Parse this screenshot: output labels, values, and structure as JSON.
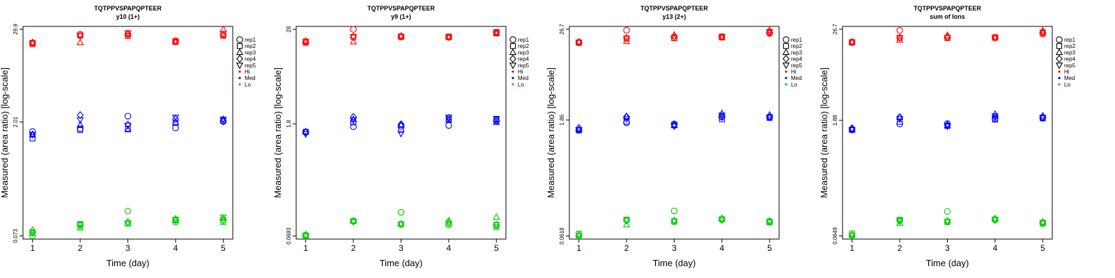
{
  "chart_data": [
    {
      "type": "scatter",
      "title": "TQTPPVSPAPQPTEER",
      "subtitle": "y10 (1+)",
      "xlabel": "Time (day)",
      "ylabel": "Measured (area ratio) [log-scale]",
      "y_scale": "log",
      "ylim": [
        0.0665,
        32.5
      ],
      "xlim": [
        0.8,
        5.2
      ],
      "x_ticks": [
        1,
        2,
        3,
        4,
        5
      ],
      "y_ticks": [
        0.073,
        2.01,
        29.9
      ],
      "levels": [
        {
          "name": "Hi",
          "color": "#ff0000",
          "reps": [
            [
              19.9,
              25.9,
              25.7,
              21.3,
              25.2
            ],
            [
              19.4,
              24.9,
              24.5,
              20.7,
              24.8
            ],
            [
              20.4,
              20.3,
              26.3,
              20.7,
              29.9
            ],
            [
              20.3,
              24.8,
              25.8,
              20.9,
              25.4
            ],
            [
              20.2,
              24.9,
              26.9,
              21.1,
              26.3
            ]
          ]
        },
        {
          "name": "Med",
          "color": "#0000ff",
          "reps": [
            [
              1.52,
              1.66,
              2.38,
              1.69,
              2.04
            ],
            [
              1.24,
              1.59,
              1.65,
              1.96,
              2.09
            ],
            [
              1.39,
              1.86,
              1.61,
              1.99,
              2.18
            ],
            [
              1.4,
              2.46,
              1.87,
              2.19,
              2.04
            ],
            [
              1.39,
              2.14,
              1.82,
              2.31,
              2.17
            ]
          ]
        },
        {
          "name": "Lo",
          "color": "#00cc00",
          "reps": [
            [
              0.073,
              0.098,
              0.15,
              0.109,
              0.117
            ],
            [
              0.079,
              0.103,
              0.105,
              0.115,
              0.109
            ],
            [
              0.087,
              0.092,
              0.104,
              0.12,
              0.122
            ],
            [
              0.08,
              0.101,
              0.109,
              0.115,
              0.114
            ],
            [
              0.082,
              0.102,
              0.106,
              0.118,
              0.126
            ]
          ]
        }
      ]
    },
    {
      "type": "scatter",
      "title": "TQTPPVSPAPQPTEER",
      "subtitle": "y9 (1+)",
      "xlabel": "Time (day)",
      "ylabel": "Measured (area ratio) [log-scale]",
      "y_scale": "log",
      "ylim": [
        0.0635,
        30.5
      ],
      "xlim": [
        0.8,
        5.2
      ],
      "x_ticks": [
        1,
        2,
        3,
        4,
        5
      ],
      "y_ticks": [
        0.0693,
        1.8,
        28
      ],
      "levels": [
        {
          "name": "Hi",
          "color": "#ff0000",
          "reps": [
            [
              19.2,
              28.0,
              22.8,
              22.5,
              25.5
            ],
            [
              19.0,
              22.5,
              22.4,
              22.7,
              25.9
            ],
            [
              20.0,
              19.6,
              23.1,
              22.1,
              24.8
            ],
            [
              19.4,
              22.7,
              22.6,
              22.3,
              25.2
            ],
            [
              19.8,
              22.3,
              22.9,
              22.6,
              25.6
            ]
          ]
        },
        {
          "name": "Med",
          "color": "#0000ff",
          "reps": [
            [
              1.41,
              1.66,
              1.68,
              1.72,
              1.96
            ],
            [
              1.43,
              1.87,
              1.51,
              2.06,
              2.05
            ],
            [
              1.44,
              2.06,
              1.75,
              2.01,
              1.88
            ],
            [
              1.42,
              2.21,
              1.78,
              2.14,
              2.0
            ],
            [
              1.34,
              2.01,
              1.36,
              2.18,
              2.1
            ]
          ]
        },
        {
          "name": "Lo",
          "color": "#00cc00",
          "reps": [
            [
              0.0693,
              0.107,
              0.138,
              0.096,
              0.094
            ],
            [
              0.0707,
              0.107,
              0.098,
              0.1,
              0.09
            ],
            [
              0.071,
              0.108,
              0.099,
              0.109,
              0.12
            ],
            [
              0.072,
              0.106,
              0.097,
              0.103,
              0.096
            ],
            [
              0.07,
              0.105,
              0.098,
              0.101,
              0.097
            ]
          ]
        }
      ]
    },
    {
      "type": "scatter",
      "title": "TQTPPVSPAPQPTEER",
      "subtitle": "y13 (2+)",
      "xlabel": "Time (day)",
      "ylabel": "Measured (area ratio) [log-scale]",
      "y_scale": "log",
      "ylim": [
        0.0565,
        29.0
      ],
      "xlim": [
        0.8,
        5.2
      ],
      "x_ticks": [
        1,
        2,
        3,
        4,
        5
      ],
      "y_ticks": [
        0.0618,
        1.86,
        26.7
      ],
      "levels": [
        {
          "name": "Hi",
          "color": "#ff0000",
          "reps": [
            [
              18.2,
              25.9,
              20.6,
              21.4,
              23.6
            ],
            [
              17.9,
              20.4,
              20.5,
              21.5,
              24.1
            ],
            [
              18.4,
              18.7,
              22.6,
              20.9,
              26.0
            ],
            [
              18.1,
              20.6,
              21.3,
              21.2,
              24.4
            ],
            [
              18.3,
              20.3,
              21.0,
              21.3,
              24.8
            ]
          ]
        },
        {
          "name": "Med",
          "color": "#0000ff",
          "reps": [
            [
              1.38,
              1.72,
              1.66,
              2.02,
              2.02
            ],
            [
              1.37,
              1.77,
              1.59,
              1.9,
              1.98
            ],
            [
              1.41,
              2.07,
              1.6,
              2.26,
              2.16
            ],
            [
              1.48,
              2.05,
              1.62,
              2.07,
              2.01
            ],
            [
              1.39,
              1.92,
              1.55,
              2.14,
              2.04
            ]
          ]
        },
        {
          "name": "Lo",
          "color": "#00cc00",
          "reps": [
            [
              0.0618,
              0.099,
              0.129,
              0.1,
              0.094
            ],
            [
              0.0664,
              0.1,
              0.094,
              0.101,
              0.092
            ],
            [
              0.064,
              0.086,
              0.098,
              0.105,
              0.097
            ],
            [
              0.063,
              0.097,
              0.095,
              0.099,
              0.093
            ],
            [
              0.0625,
              0.098,
              0.096,
              0.1,
              0.095
            ]
          ]
        }
      ]
    },
    {
      "type": "scatter",
      "title": "TQTPPVSPAPQPTEER",
      "subtitle": "sum of Ions",
      "xlabel": "Time (day)",
      "ylabel": "Measured (area ratio) [log-scale]",
      "y_scale": "log",
      "ylim": [
        0.0592,
        29.0
      ],
      "xlim": [
        0.8,
        5.2
      ],
      "x_ticks": [
        1,
        2,
        3,
        4,
        5
      ],
      "y_ticks": [
        0.0649,
        1.88,
        26.7
      ],
      "levels": [
        {
          "name": "Hi",
          "color": "#ff0000",
          "reps": [
            [
              18.4,
              25.8,
              20.9,
              21.0,
              23.3
            ],
            [
              18.1,
              20.8,
              20.7,
              21.1,
              23.9
            ],
            [
              18.5,
              19.4,
              22.4,
              20.7,
              25.7
            ],
            [
              18.2,
              20.9,
              21.2,
              20.9,
              24.2
            ],
            [
              18.4,
              20.6,
              21.0,
              21.0,
              24.5
            ]
          ]
        },
        {
          "name": "Med",
          "color": "#0000ff",
          "reps": [
            [
              1.44,
              1.69,
              1.71,
              1.99,
              2.03
            ],
            [
              1.42,
              1.8,
              1.6,
              1.92,
              1.99
            ],
            [
              1.45,
              2.08,
              1.62,
              2.25,
              2.15
            ],
            [
              1.5,
              2.07,
              1.65,
              2.08,
              2.02
            ],
            [
              1.43,
              1.95,
              1.58,
              2.13,
              2.05
            ]
          ]
        },
        {
          "name": "Lo",
          "color": "#00cc00",
          "reps": [
            [
              0.0649,
              0.103,
              0.132,
              0.104,
              0.095
            ],
            [
              0.07,
              0.104,
              0.097,
              0.105,
              0.093
            ],
            [
              0.0672,
              0.094,
              0.101,
              0.108,
              0.098
            ],
            [
              0.0665,
              0.1,
              0.098,
              0.103,
              0.094
            ],
            [
              0.066,
              0.101,
              0.099,
              0.104,
              0.096
            ]
          ]
        }
      ]
    }
  ],
  "legend": {
    "reps": [
      {
        "label": "rep1",
        "marker": "circle"
      },
      {
        "label": "rep2",
        "marker": "square"
      },
      {
        "label": "rep3",
        "marker": "triangle-up"
      },
      {
        "label": "rep4",
        "marker": "diamond"
      },
      {
        "label": "rep5",
        "marker": "triangle-down"
      }
    ],
    "levels": [
      {
        "label": "Hi",
        "color": "#ff0000"
      },
      {
        "label": "Med",
        "color": "#0000ff"
      },
      {
        "label": "Lo",
        "color": "#00cc00"
      }
    ],
    "placement": "right"
  }
}
